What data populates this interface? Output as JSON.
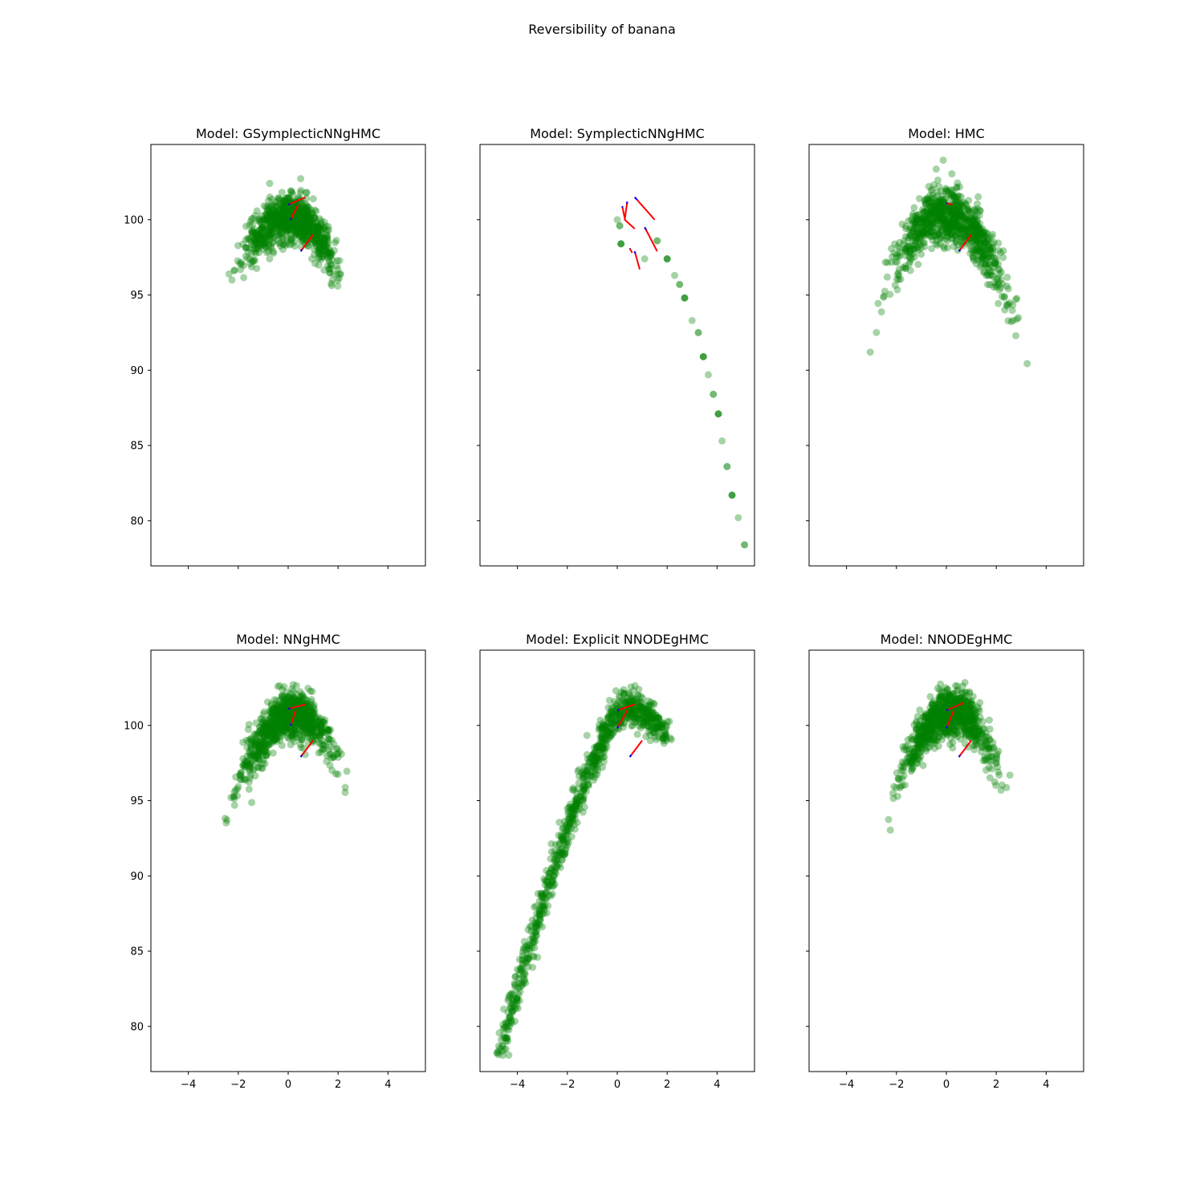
{
  "figure": {
    "suptitle": "Reversibility of banana",
    "xlim": [
      -5.5,
      5.5
    ],
    "ylim": [
      77,
      105
    ],
    "xticks": [
      -4,
      -2,
      0,
      2,
      4
    ],
    "yticks": [
      80,
      85,
      90,
      95,
      100
    ],
    "point_color": "#008000",
    "forward_color": "#ff0000",
    "backward_color": "#0000ff"
  },
  "chart_data": [
    {
      "type": "scatter",
      "title": "Model: GSymplecticNNgHMC",
      "cloud": {
        "shape": "banana",
        "x_range": [
          -2.5,
          2.6
        ],
        "peak": [
          0.1,
          100.2
        ],
        "spread": 1.3,
        "left_end_y": 95.2,
        "right_end_y": 93.5
      },
      "trajectories": [
        {
          "x": [
            0.0,
            0.7
          ],
          "y": [
            101.0,
            101.5
          ]
        },
        {
          "x": [
            0.1,
            0.4
          ],
          "y": [
            100.0,
            101.0
          ]
        },
        {
          "x": [
            0.5,
            1.0
          ],
          "y": [
            97.9,
            99.0
          ]
        }
      ]
    },
    {
      "type": "scatter",
      "title": "Model: SymplecticNNgHMC",
      "points": [
        {
          "x": 0.0,
          "y": 100.0
        },
        {
          "x": 0.1,
          "y": 99.6
        },
        {
          "x": 0.15,
          "y": 98.4
        },
        {
          "x": 1.1,
          "y": 97.4
        },
        {
          "x": 1.6,
          "y": 98.6
        },
        {
          "x": 2.0,
          "y": 97.4
        },
        {
          "x": 2.3,
          "y": 96.3
        },
        {
          "x": 2.5,
          "y": 95.7
        },
        {
          "x": 2.7,
          "y": 94.8
        },
        {
          "x": 3.0,
          "y": 93.3
        },
        {
          "x": 3.25,
          "y": 92.5
        },
        {
          "x": 3.45,
          "y": 90.9
        },
        {
          "x": 3.65,
          "y": 89.7
        },
        {
          "x": 3.85,
          "y": 88.4
        },
        {
          "x": 4.05,
          "y": 87.1
        },
        {
          "x": 4.2,
          "y": 85.3
        },
        {
          "x": 4.4,
          "y": 83.6
        },
        {
          "x": 4.6,
          "y": 81.7
        },
        {
          "x": 4.85,
          "y": 80.2
        },
        {
          "x": 5.1,
          "y": 78.4
        }
      ],
      "trajectories": [
        {
          "x": [
            0.7,
            1.5
          ],
          "y": [
            101.5,
            100.0
          ]
        },
        {
          "x": [
            0.4,
            0.3,
            0.7
          ],
          "y": [
            101.2,
            100.0,
            99.4
          ]
        },
        {
          "x": [
            1.1,
            1.6
          ],
          "y": [
            99.5,
            97.9
          ]
        },
        {
          "x": [
            0.7,
            0.9
          ],
          "y": [
            97.9,
            96.7
          ]
        },
        {
          "x": [
            0.2,
            0.3
          ],
          "y": [
            100.9,
            100.1
          ]
        },
        {
          "x": [
            0.5,
            0.6
          ],
          "y": [
            98.1,
            97.8
          ]
        }
      ]
    },
    {
      "type": "scatter",
      "title": "Model: HMC",
      "cloud": {
        "shape": "banana",
        "x_range": [
          -3.1,
          3.4
        ],
        "peak": [
          0.0,
          100.4
        ],
        "spread": 1.5,
        "left_end_y": 91.8,
        "right_end_y": 89.6
      },
      "trajectories": [
        {
          "x": [
            0.0,
            0.25
          ],
          "y": [
            101.1,
            101.0
          ]
        },
        {
          "x": [
            0.5,
            1.0
          ],
          "y": [
            97.9,
            99.0
          ]
        }
      ]
    },
    {
      "type": "scatter",
      "title": "Model: NNgHMC",
      "cloud": {
        "shape": "banana",
        "x_range": [
          -2.7,
          2.6
        ],
        "peak": [
          0.2,
          100.7
        ],
        "spread": 1.3,
        "left_end_y": 92.5,
        "right_end_y": 95.5
      },
      "trajectories": [
        {
          "x": [
            0.0,
            0.7
          ],
          "y": [
            101.1,
            101.4
          ]
        },
        {
          "x": [
            0.1,
            0.3
          ],
          "y": [
            100.0,
            101.0
          ]
        },
        {
          "x": [
            0.5,
            1.0
          ],
          "y": [
            97.9,
            99.0
          ]
        }
      ]
    },
    {
      "type": "scatter",
      "title": "Model: Explicit NNODEgHMC",
      "cloud": {
        "shape": "arc",
        "x_range": [
          -4.7,
          2.0
        ],
        "peak": [
          0.3,
          101.2
        ],
        "spread": 0.9,
        "left_end_y": 78.2,
        "right_end_y": 99.3
      },
      "trajectories": [
        {
          "x": [
            0.0,
            0.7
          ],
          "y": [
            101.0,
            101.4
          ]
        },
        {
          "x": [
            0.0,
            0.4
          ],
          "y": [
            99.8,
            101.0
          ]
        },
        {
          "x": [
            0.5,
            1.0
          ],
          "y": [
            97.9,
            99.0
          ]
        }
      ]
    },
    {
      "type": "scatter",
      "title": "Model: NNODEgHMC",
      "cloud": {
        "shape": "banana",
        "x_range": [
          -2.6,
          2.8
        ],
        "peak": [
          0.3,
          100.9
        ],
        "spread": 1.3,
        "left_end_y": 92.7,
        "right_end_y": 92.8
      },
      "trajectories": [
        {
          "x": [
            0.0,
            0.7
          ],
          "y": [
            101.0,
            101.5
          ]
        },
        {
          "x": [
            0.0,
            0.3
          ],
          "y": [
            99.8,
            101.0
          ]
        },
        {
          "x": [
            0.5,
            1.0
          ],
          "y": [
            97.9,
            99.0
          ]
        }
      ]
    }
  ]
}
